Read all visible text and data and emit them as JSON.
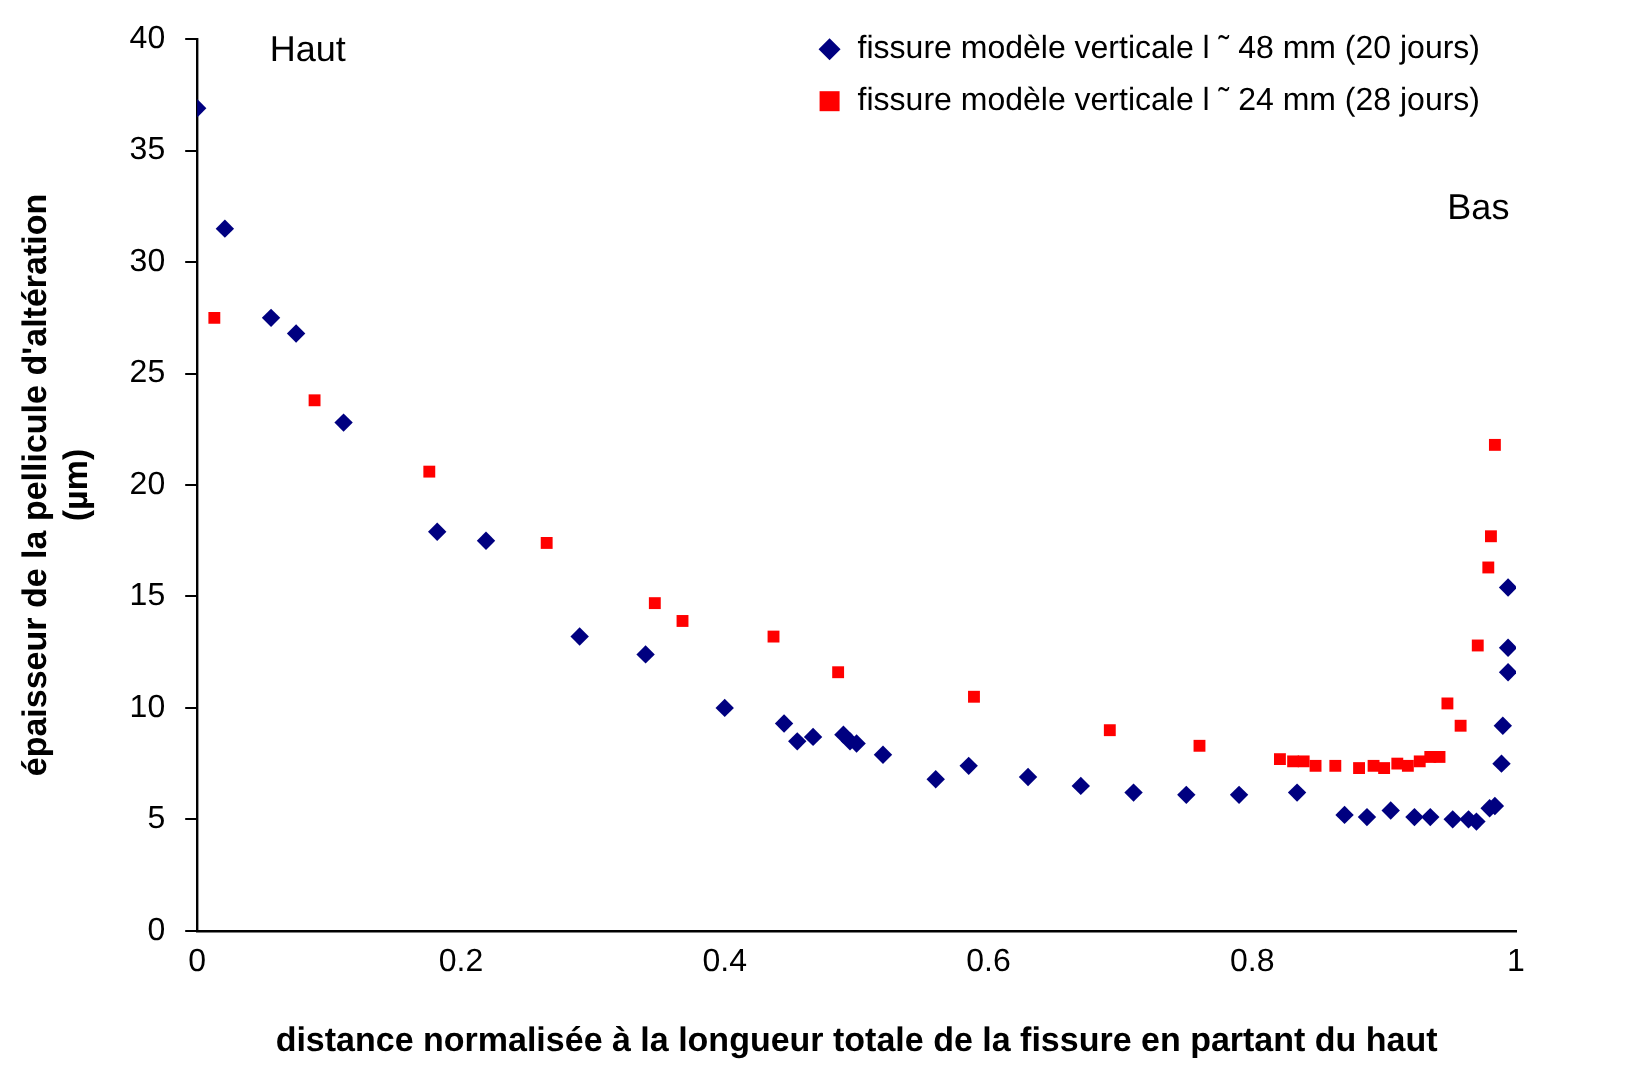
{
  "chart_data": {
    "type": "scatter",
    "xlabel": "distance normalisée à la longueur totale de la fissure en partant du haut",
    "ylabel": "épaisseur de la pellicule d'altération (µm)",
    "annotations": [
      "Haut",
      "Bas"
    ],
    "xlim": [
      0,
      1.0
    ],
    "xticks": [
      0,
      0.2,
      0.4,
      0.6,
      0.8,
      1
    ],
    "ylim": [
      0,
      40
    ],
    "yticks": [
      0,
      5,
      10,
      15,
      20,
      25,
      30,
      35,
      40
    ],
    "grid": false,
    "legend": "top right",
    "series": [
      {
        "name": "fissure modèle verticale l ˜ 48 mm (20 jours)",
        "color": "#000080",
        "marker": "diamond",
        "x": [
          0,
          0.021,
          0.056,
          0.075,
          0.111,
          0.182,
          0.219,
          0.29,
          0.34,
          0.4,
          0.445,
          0.455,
          0.467,
          0.49,
          0.495,
          0.5,
          0.52,
          0.56,
          0.585,
          0.63,
          0.67,
          0.71,
          0.75,
          0.79,
          0.834,
          0.87,
          0.887,
          0.905,
          0.923,
          0.935,
          0.952,
          0.964,
          0.97,
          0.98,
          0.984,
          0.989,
          0.99,
          0.994,
          0.994,
          0.994
        ],
        "values": [
          36.9,
          31.5,
          27.5,
          26.8,
          22.8,
          17.9,
          17.5,
          13.2,
          12.4,
          10.0,
          9.3,
          8.5,
          8.7,
          8.8,
          8.5,
          8.4,
          7.9,
          6.8,
          7.4,
          6.9,
          6.5,
          6.2,
          6.1,
          6.1,
          6.2,
          5.2,
          5.1,
          5.4,
          5.1,
          5.1,
          5.0,
          5.0,
          4.9,
          5.5,
          5.6,
          7.5,
          9.2,
          11.6,
          12.7,
          15.4
        ]
      },
      {
        "name": "fissure modèle verticale l ˜ 24 mm (28 jours)",
        "color": "#ff0000",
        "marker": "square",
        "x": [
          0.013,
          0.089,
          0.176,
          0.265,
          0.347,
          0.368,
          0.437,
          0.486,
          0.589,
          0.692,
          0.76,
          0.821,
          0.831,
          0.839,
          0.848,
          0.863,
          0.881,
          0.892,
          0.9,
          0.91,
          0.918,
          0.927,
          0.935,
          0.942,
          0.948,
          0.958,
          0.971,
          0.979,
          0.981,
          0.984
        ],
        "values": [
          27.5,
          23.8,
          20.6,
          17.4,
          14.7,
          13.9,
          13.2,
          11.6,
          10.5,
          9.0,
          8.3,
          7.7,
          7.6,
          7.6,
          7.4,
          7.4,
          7.3,
          7.4,
          7.3,
          7.5,
          7.4,
          7.6,
          7.8,
          7.8,
          10.2,
          9.2,
          12.8,
          16.3,
          17.7,
          21.8
        ]
      }
    ]
  }
}
